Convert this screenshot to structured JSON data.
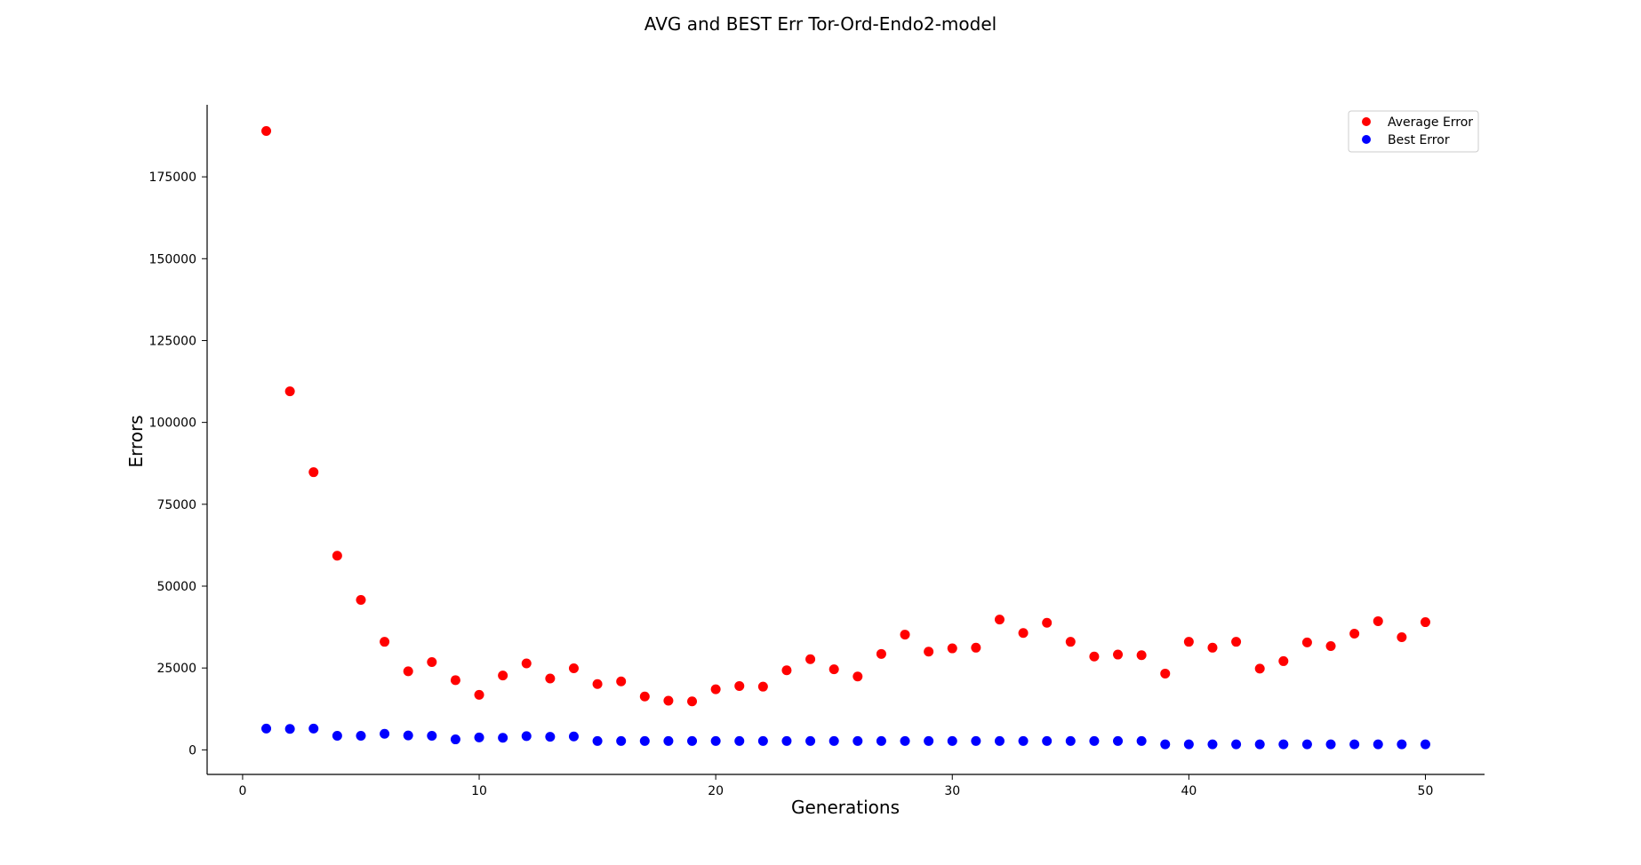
{
  "chart_data": {
    "type": "scatter",
    "title": "AVG and BEST Err Tor-Ord-Endo2-model",
    "xlabel": "Generations",
    "ylabel": "Errors",
    "xlim": [
      -1.5,
      52.5
    ],
    "ylim": [
      -7500,
      197000
    ],
    "x_ticks": [
      0,
      10,
      20,
      30,
      40,
      50
    ],
    "y_ticks": [
      0,
      25000,
      50000,
      75000,
      100000,
      125000,
      150000,
      175000
    ],
    "grid": false,
    "legend_position": "top-right",
    "x": [
      1,
      2,
      3,
      4,
      5,
      6,
      7,
      8,
      9,
      10,
      11,
      12,
      13,
      14,
      15,
      16,
      17,
      18,
      19,
      20,
      21,
      22,
      23,
      24,
      25,
      26,
      27,
      28,
      29,
      30,
      31,
      32,
      33,
      34,
      35,
      36,
      37,
      38,
      39,
      40,
      41,
      42,
      43,
      44,
      45,
      46,
      47,
      48,
      49,
      50
    ],
    "series": [
      {
        "name": "Average Error",
        "color": "#ff0000",
        "values": [
          189000,
          109500,
          84800,
          59300,
          45800,
          33000,
          24000,
          26800,
          21300,
          16800,
          22700,
          26400,
          21800,
          24900,
          20100,
          20900,
          16300,
          15000,
          14800,
          18500,
          19500,
          19300,
          24300,
          27700,
          24600,
          22400,
          29300,
          35200,
          30000,
          31000,
          31200,
          39800,
          35700,
          38800,
          33000,
          28500,
          29100,
          28900,
          23300,
          33000,
          31200,
          33000,
          24800,
          27100,
          32800,
          31700,
          35500,
          39300,
          34400,
          39000
        ]
      },
      {
        "name": "Best Error",
        "color": "#0000ff",
        "values": [
          6500,
          6400,
          6500,
          4300,
          4300,
          4900,
          4400,
          4300,
          3200,
          3800,
          3700,
          4200,
          4000,
          4100,
          2700,
          2700,
          2700,
          2700,
          2700,
          2700,
          2700,
          2700,
          2700,
          2700,
          2700,
          2700,
          2700,
          2700,
          2700,
          2700,
          2700,
          2700,
          2700,
          2700,
          2700,
          2700,
          2700,
          2700,
          1700,
          1700,
          1700,
          1700,
          1700,
          1700,
          1700,
          1700,
          1700,
          1700,
          1700,
          1700
        ]
      }
    ]
  }
}
